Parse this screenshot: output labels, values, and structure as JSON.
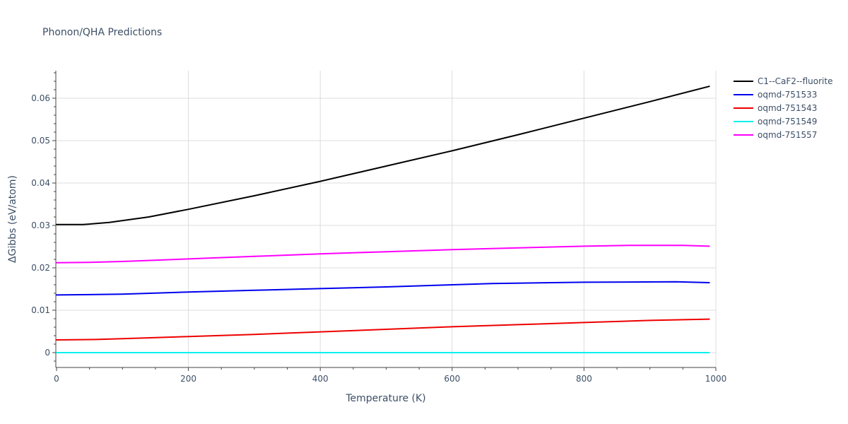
{
  "chart_data": {
    "type": "line",
    "title": "Phonon/QHA Predictions",
    "xlabel": "Temperature (K)",
    "ylabel": "ΔGibbs (eV/atom)",
    "xlim": [
      0,
      1000
    ],
    "ylim": [
      -0.0035,
      0.0665
    ],
    "x_ticks": [
      0,
      200,
      400,
      600,
      800,
      1000
    ],
    "x_tick_labels": [
      "0",
      "200",
      "400",
      "600",
      "800",
      "1000"
    ],
    "y_ticks": [
      0,
      0.01,
      0.02,
      0.03,
      0.04,
      0.05,
      0.06
    ],
    "y_tick_labels": [
      "0",
      "0.01",
      "0.02",
      "0.03",
      "0.04",
      "0.05",
      "0.06"
    ],
    "grid": true,
    "legend_position": "top-right outside",
    "series": [
      {
        "name": "C1--CaF2--fluorite",
        "color": "#000000",
        "x": [
          0,
          40,
          80,
          140,
          200,
          300,
          400,
          500,
          600,
          700,
          800,
          900,
          990
        ],
        "y": [
          0.0302,
          0.0302,
          0.0307,
          0.032,
          0.0338,
          0.037,
          0.0404,
          0.044,
          0.0476,
          0.0514,
          0.0553,
          0.0592,
          0.0628
        ]
      },
      {
        "name": "oqmd-751533",
        "color": "#0000ee",
        "x": [
          0,
          60,
          100,
          200,
          300,
          400,
          500,
          600,
          660,
          800,
          940,
          990
        ],
        "y": [
          0.0136,
          0.0137,
          0.0138,
          0.0143,
          0.0147,
          0.0151,
          0.0155,
          0.016,
          0.0163,
          0.0166,
          0.0167,
          0.0165
        ]
      },
      {
        "name": "oqmd-751543",
        "color": "#ee0000",
        "x": [
          0,
          60,
          100,
          200,
          300,
          400,
          500,
          600,
          700,
          800,
          900,
          990
        ],
        "y": [
          0.003,
          0.0031,
          0.0033,
          0.0038,
          0.0043,
          0.0049,
          0.0055,
          0.0061,
          0.0066,
          0.0071,
          0.0076,
          0.0079
        ]
      },
      {
        "name": "oqmd-751549",
        "color": "#00f0f0",
        "x": [
          0,
          200,
          400,
          600,
          800,
          990
        ],
        "y": [
          0,
          0,
          0,
          0,
          0,
          0
        ]
      },
      {
        "name": "oqmd-751557",
        "color": "#ff00ff",
        "x": [
          0,
          50,
          100,
          200,
          300,
          400,
          500,
          600,
          700,
          800,
          870,
          950,
          990
        ],
        "y": [
          0.0212,
          0.0213,
          0.0215,
          0.0221,
          0.0227,
          0.0233,
          0.0238,
          0.0243,
          0.0247,
          0.0251,
          0.0253,
          0.0253,
          0.0251
        ]
      }
    ]
  }
}
